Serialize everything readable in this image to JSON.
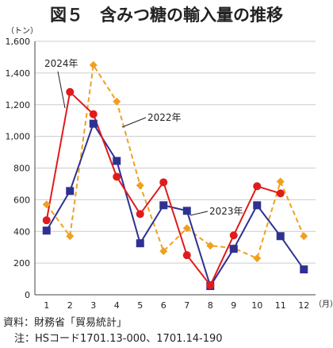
{
  "chart_data": {
    "type": "line",
    "title": "図５　含みつ糖の輸入量の推移",
    "y_unit": "（トン）",
    "x_unit": "（月）",
    "categories": [
      "1",
      "2",
      "3",
      "4",
      "5",
      "6",
      "7",
      "8",
      "9",
      "10",
      "11",
      "12"
    ],
    "ylim": [
      0,
      1600
    ],
    "yticks": [
      "0",
      "200",
      "400",
      "600",
      "800",
      "1,000",
      "1,200",
      "1,400",
      "1,600"
    ],
    "grid": true,
    "series": [
      {
        "name": "2022年",
        "color": "#f0a020",
        "marker": "diamond",
        "dashed": true,
        "values": [
          570,
          370,
          1450,
          1220,
          690,
          275,
          420,
          310,
          295,
          230,
          715,
          370
        ]
      },
      {
        "name": "2023年",
        "color": "#2e3192",
        "marker": "square",
        "dashed": false,
        "values": [
          405,
          655,
          1080,
          845,
          325,
          565,
          530,
          55,
          290,
          565,
          370,
          160
        ]
      },
      {
        "name": "2024年",
        "color": "#e01b1b",
        "marker": "circle",
        "dashed": false,
        "values": [
          470,
          1280,
          1140,
          745,
          510,
          710,
          250,
          60,
          375,
          685,
          640,
          null
        ]
      }
    ],
    "annotations": [
      "2024年",
      "2022年",
      "2023年"
    ]
  },
  "notes": {
    "source": "資料：財務省「貿易統計」",
    "note": "注：HSコード1701.13-000、1701.14-190"
  }
}
